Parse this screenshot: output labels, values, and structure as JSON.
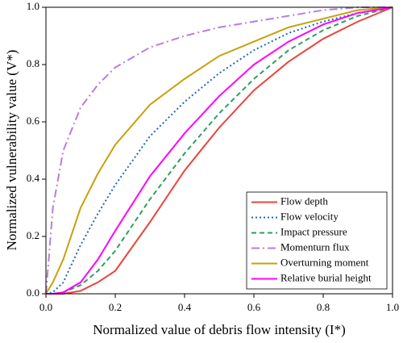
{
  "chart_data": {
    "type": "line",
    "x_label": "Normalized value of debris flow intensity (I*)",
    "y_label": "Normalized vulnerability value (V*)",
    "x": [
      0,
      0.02,
      0.05,
      0.1,
      0.15,
      0.2,
      0.3,
      0.4,
      0.5,
      0.6,
      0.7,
      0.8,
      0.9,
      1.0
    ],
    "series": [
      {
        "name": "Flow depth",
        "color": "#e8453c",
        "dash": "solid",
        "values": [
          0,
          0,
          0,
          0.01,
          0.04,
          0.08,
          0.25,
          0.43,
          0.58,
          0.71,
          0.81,
          0.89,
          0.95,
          1
        ]
      },
      {
        "name": "Flow velocity",
        "color": "#2266c4",
        "dash": "dotted",
        "values": [
          0,
          0.005,
          0.04,
          0.17,
          0.28,
          0.38,
          0.55,
          0.67,
          0.77,
          0.85,
          0.91,
          0.95,
          0.98,
          1
        ]
      },
      {
        "name": "Impact pressure",
        "color": "#2e9e5e",
        "dash": "dashed",
        "values": [
          0,
          0,
          0.005,
          0.03,
          0.08,
          0.15,
          0.33,
          0.49,
          0.63,
          0.75,
          0.85,
          0.92,
          0.97,
          1
        ]
      },
      {
        "name": "Momenturn flux",
        "color": "#b57ee0",
        "dash": "dashdot",
        "values": [
          0,
          0.3,
          0.5,
          0.65,
          0.73,
          0.79,
          0.86,
          0.9,
          0.93,
          0.95,
          0.97,
          0.99,
          1,
          1
        ]
      },
      {
        "name": "Overturning moment",
        "color": "#c9a00c",
        "dash": "solid",
        "values": [
          0,
          0.04,
          0.12,
          0.3,
          0.42,
          0.52,
          0.66,
          0.75,
          0.83,
          0.88,
          0.93,
          0.96,
          0.99,
          1
        ]
      },
      {
        "name": "Relative burial height",
        "color": "#ff00ff",
        "dash": "solid",
        "values": [
          0,
          0,
          0.005,
          0.04,
          0.12,
          0.22,
          0.41,
          0.56,
          0.69,
          0.8,
          0.88,
          0.94,
          0.98,
          1
        ]
      }
    ],
    "xlim": [
      0,
      1
    ],
    "ylim": [
      0,
      1
    ],
    "xticks": [
      {
        "value": 0,
        "label": "0.0"
      },
      {
        "value": 0.2,
        "label": "0.2"
      },
      {
        "value": 0.4,
        "label": "0.4"
      },
      {
        "value": 0.6,
        "label": "0.6"
      },
      {
        "value": 0.8,
        "label": "0.8"
      },
      {
        "value": 1,
        "label": "1.0"
      }
    ],
    "yticks": [
      {
        "value": 0,
        "label": "0.0"
      },
      {
        "value": 0.2,
        "label": "0.2"
      },
      {
        "value": 0.4,
        "label": "0.4"
      },
      {
        "value": 0.6,
        "label": "0.6"
      },
      {
        "value": 0.8,
        "label": "0.8"
      },
      {
        "value": 1,
        "label": "1.0"
      }
    ],
    "grid": false,
    "legend": "lower-right"
  }
}
